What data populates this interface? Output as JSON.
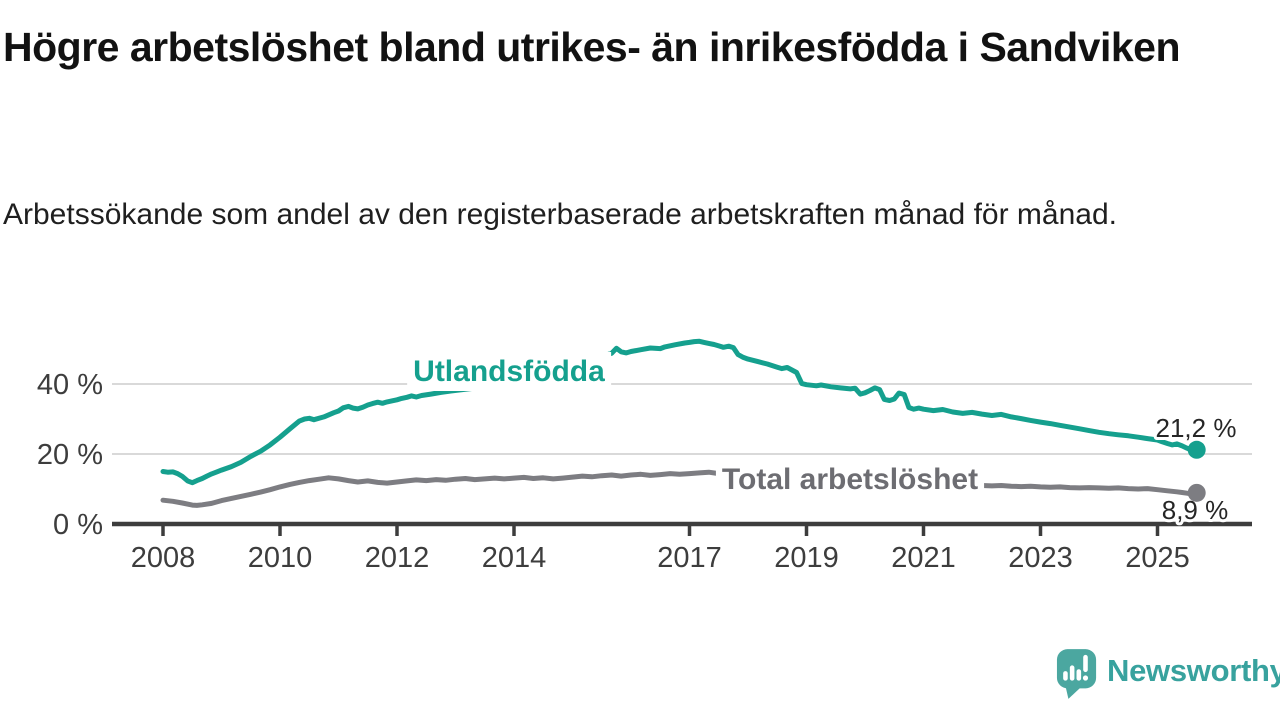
{
  "header": {
    "title": "Högre arbetslöshet bland utrikes- än inrikesfödda i Sandviken",
    "subtitle": "Arbetssökande som andel av den registerbaserade arbetskraften månad för månad."
  },
  "chart_data": {
    "type": "line",
    "title": "Högre arbetslöshet bland utrikes- än inrikesfödda i Sandviken",
    "subtitle": "Arbetssökande som andel av den registerbaserade arbetskraften månad för månad.",
    "unit": "%",
    "grid": "horizontal",
    "legend": "inline-labels",
    "x_range": [
      2008,
      2025.67
    ],
    "ylim": [
      0,
      55
    ],
    "x_ticks": [
      "2008",
      "2010",
      "2012",
      "2014",
      "2017",
      "2019",
      "2021",
      "2023",
      "2025"
    ],
    "y_ticks": [
      {
        "value": 0,
        "label": "0 %"
      },
      {
        "value": 20,
        "label": "20 %"
      },
      {
        "value": 40,
        "label": "40 %"
      }
    ],
    "series": [
      {
        "name": "Utlandsfödda",
        "color": "#15a08e",
        "end_label": "21,2 %",
        "end_value": 21.2,
        "points": [
          [
            2008.0,
            15.0
          ],
          [
            2008.08,
            14.8
          ],
          [
            2008.17,
            14.9
          ],
          [
            2008.25,
            14.4
          ],
          [
            2008.33,
            13.6
          ],
          [
            2008.42,
            12.3
          ],
          [
            2008.5,
            11.8
          ],
          [
            2008.58,
            12.4
          ],
          [
            2008.67,
            13.0
          ],
          [
            2008.75,
            13.7
          ],
          [
            2008.83,
            14.3
          ],
          [
            2008.92,
            14.9
          ],
          [
            2009.0,
            15.4
          ],
          [
            2009.17,
            16.4
          ],
          [
            2009.33,
            17.6
          ],
          [
            2009.5,
            19.3
          ],
          [
            2009.67,
            20.8
          ],
          [
            2009.83,
            22.6
          ],
          [
            2010.0,
            24.8
          ],
          [
            2010.17,
            27.2
          ],
          [
            2010.33,
            29.4
          ],
          [
            2010.42,
            30.0
          ],
          [
            2010.5,
            30.2
          ],
          [
            2010.58,
            29.8
          ],
          [
            2010.75,
            30.6
          ],
          [
            2010.92,
            31.8
          ],
          [
            2011.0,
            32.3
          ],
          [
            2011.08,
            33.2
          ],
          [
            2011.17,
            33.6
          ],
          [
            2011.25,
            33.1
          ],
          [
            2011.33,
            32.9
          ],
          [
            2011.42,
            33.4
          ],
          [
            2011.5,
            34.0
          ],
          [
            2011.58,
            34.4
          ],
          [
            2011.67,
            34.8
          ],
          [
            2011.75,
            34.5
          ],
          [
            2011.83,
            34.9
          ],
          [
            2011.92,
            35.2
          ],
          [
            2012.0,
            35.5
          ],
          [
            2012.08,
            35.9
          ],
          [
            2012.17,
            36.2
          ],
          [
            2012.25,
            36.6
          ],
          [
            2012.33,
            36.3
          ],
          [
            2012.42,
            36.7
          ],
          [
            2012.58,
            37.1
          ],
          [
            2012.75,
            37.6
          ],
          [
            2012.92,
            38.0
          ],
          [
            2013.17,
            38.5
          ],
          [
            2013.42,
            39.0
          ],
          [
            2013.67,
            39.5
          ],
          [
            2013.92,
            40.0
          ],
          [
            2014.17,
            40.7
          ],
          [
            2014.42,
            41.5
          ],
          [
            2014.67,
            42.4
          ],
          [
            2014.92,
            43.5
          ],
          [
            2015.17,
            44.8
          ],
          [
            2015.33,
            45.8
          ],
          [
            2015.42,
            46.4
          ],
          [
            2015.5,
            47.2
          ],
          [
            2015.58,
            48.3
          ],
          [
            2015.67,
            48.8
          ],
          [
            2015.75,
            50.2
          ],
          [
            2015.83,
            49.2
          ],
          [
            2015.92,
            48.9
          ],
          [
            2016.0,
            49.3
          ],
          [
            2016.17,
            49.8
          ],
          [
            2016.33,
            50.3
          ],
          [
            2016.5,
            50.1
          ],
          [
            2016.58,
            50.6
          ],
          [
            2016.75,
            51.2
          ],
          [
            2016.92,
            51.7
          ],
          [
            2017.0,
            51.9
          ],
          [
            2017.08,
            52.1
          ],
          [
            2017.17,
            52.2
          ],
          [
            2017.25,
            51.9
          ],
          [
            2017.33,
            51.6
          ],
          [
            2017.42,
            51.3
          ],
          [
            2017.5,
            50.9
          ],
          [
            2017.58,
            50.5
          ],
          [
            2017.67,
            50.8
          ],
          [
            2017.75,
            50.4
          ],
          [
            2017.83,
            48.4
          ],
          [
            2017.92,
            47.6
          ],
          [
            2018.0,
            47.1
          ],
          [
            2018.17,
            46.4
          ],
          [
            2018.33,
            45.7
          ],
          [
            2018.5,
            44.8
          ],
          [
            2018.58,
            44.4
          ],
          [
            2018.67,
            44.7
          ],
          [
            2018.75,
            44.0
          ],
          [
            2018.83,
            43.3
          ],
          [
            2018.92,
            40.1
          ],
          [
            2019.0,
            39.8
          ],
          [
            2019.17,
            39.5
          ],
          [
            2019.25,
            39.7
          ],
          [
            2019.42,
            39.2
          ],
          [
            2019.58,
            38.9
          ],
          [
            2019.75,
            38.6
          ],
          [
            2019.83,
            38.8
          ],
          [
            2019.92,
            37.1
          ],
          [
            2020.0,
            37.5
          ],
          [
            2020.08,
            38.1
          ],
          [
            2020.17,
            38.9
          ],
          [
            2020.25,
            38.4
          ],
          [
            2020.33,
            35.6
          ],
          [
            2020.42,
            35.3
          ],
          [
            2020.5,
            35.7
          ],
          [
            2020.58,
            37.4
          ],
          [
            2020.67,
            37.0
          ],
          [
            2020.75,
            33.3
          ],
          [
            2020.83,
            32.8
          ],
          [
            2020.92,
            33.1
          ],
          [
            2021.0,
            32.8
          ],
          [
            2021.17,
            32.4
          ],
          [
            2021.33,
            32.7
          ],
          [
            2021.5,
            32.0
          ],
          [
            2021.67,
            31.6
          ],
          [
            2021.83,
            31.9
          ],
          [
            2022.0,
            31.4
          ],
          [
            2022.17,
            31.0
          ],
          [
            2022.33,
            31.3
          ],
          [
            2022.5,
            30.6
          ],
          [
            2022.67,
            30.1
          ],
          [
            2022.83,
            29.6
          ],
          [
            2023.0,
            29.1
          ],
          [
            2023.17,
            28.7
          ],
          [
            2023.33,
            28.2
          ],
          [
            2023.5,
            27.7
          ],
          [
            2023.67,
            27.2
          ],
          [
            2023.83,
            26.7
          ],
          [
            2024.0,
            26.2
          ],
          [
            2024.17,
            25.8
          ],
          [
            2024.33,
            25.5
          ],
          [
            2024.5,
            25.2
          ],
          [
            2024.67,
            24.8
          ],
          [
            2024.83,
            24.4
          ],
          [
            2025.0,
            24.0
          ],
          [
            2025.08,
            23.5
          ],
          [
            2025.17,
            23.0
          ],
          [
            2025.25,
            22.6
          ],
          [
            2025.33,
            22.9
          ],
          [
            2025.42,
            22.3
          ],
          [
            2025.5,
            21.7
          ],
          [
            2025.58,
            21.1
          ],
          [
            2025.67,
            21.2
          ]
        ]
      },
      {
        "name": "Total arbetslöshet",
        "color": "#7d7d82",
        "label_color": "#6d6d72",
        "end_label": "8,9 %",
        "end_value": 8.9,
        "points": [
          [
            2008.0,
            6.8
          ],
          [
            2008.17,
            6.5
          ],
          [
            2008.33,
            6.0
          ],
          [
            2008.5,
            5.4
          ],
          [
            2008.58,
            5.3
          ],
          [
            2008.67,
            5.5
          ],
          [
            2008.83,
            5.9
          ],
          [
            2009.0,
            6.7
          ],
          [
            2009.17,
            7.3
          ],
          [
            2009.33,
            7.9
          ],
          [
            2009.5,
            8.5
          ],
          [
            2009.67,
            9.1
          ],
          [
            2009.83,
            9.8
          ],
          [
            2010.0,
            10.6
          ],
          [
            2010.17,
            11.3
          ],
          [
            2010.33,
            11.9
          ],
          [
            2010.5,
            12.4
          ],
          [
            2010.67,
            12.8
          ],
          [
            2010.83,
            13.2
          ],
          [
            2011.0,
            12.9
          ],
          [
            2011.17,
            12.4
          ],
          [
            2011.33,
            12.0
          ],
          [
            2011.5,
            12.3
          ],
          [
            2011.67,
            11.9
          ],
          [
            2011.83,
            11.7
          ],
          [
            2012.0,
            12.0
          ],
          [
            2012.17,
            12.3
          ],
          [
            2012.33,
            12.6
          ],
          [
            2012.5,
            12.4
          ],
          [
            2012.67,
            12.7
          ],
          [
            2012.83,
            12.5
          ],
          [
            2013.0,
            12.8
          ],
          [
            2013.17,
            13.0
          ],
          [
            2013.33,
            12.7
          ],
          [
            2013.5,
            12.9
          ],
          [
            2013.67,
            13.1
          ],
          [
            2013.83,
            12.9
          ],
          [
            2014.0,
            13.1
          ],
          [
            2014.17,
            13.3
          ],
          [
            2014.33,
            13.0
          ],
          [
            2014.5,
            13.2
          ],
          [
            2014.67,
            12.9
          ],
          [
            2014.83,
            13.1
          ],
          [
            2015.0,
            13.4
          ],
          [
            2015.17,
            13.7
          ],
          [
            2015.33,
            13.5
          ],
          [
            2015.5,
            13.8
          ],
          [
            2015.67,
            14.0
          ],
          [
            2015.83,
            13.7
          ],
          [
            2016.0,
            14.0
          ],
          [
            2016.17,
            14.2
          ],
          [
            2016.33,
            13.9
          ],
          [
            2016.5,
            14.1
          ],
          [
            2016.67,
            14.4
          ],
          [
            2016.83,
            14.2
          ],
          [
            2017.0,
            14.4
          ],
          [
            2017.17,
            14.6
          ],
          [
            2017.33,
            14.8
          ],
          [
            2017.5,
            14.4
          ],
          [
            2017.75,
            14.0
          ],
          [
            2018.0,
            13.6
          ],
          [
            2018.25,
            13.3
          ],
          [
            2018.5,
            13.1
          ],
          [
            2018.75,
            12.9
          ],
          [
            2019.0,
            12.7
          ],
          [
            2019.25,
            12.4
          ],
          [
            2019.5,
            12.2
          ],
          [
            2019.75,
            12.1
          ],
          [
            2020.0,
            12.3
          ],
          [
            2020.25,
            12.7
          ],
          [
            2020.5,
            12.5
          ],
          [
            2020.75,
            12.0
          ],
          [
            2021.0,
            11.8
          ],
          [
            2021.25,
            11.5
          ],
          [
            2021.5,
            11.3
          ],
          [
            2021.75,
            11.1
          ],
          [
            2022.0,
            11.0
          ],
          [
            2022.17,
            10.9
          ],
          [
            2022.33,
            11.0
          ],
          [
            2022.5,
            10.8
          ],
          [
            2022.67,
            10.7
          ],
          [
            2022.83,
            10.8
          ],
          [
            2023.0,
            10.6
          ],
          [
            2023.17,
            10.5
          ],
          [
            2023.33,
            10.6
          ],
          [
            2023.5,
            10.4
          ],
          [
            2023.67,
            10.3
          ],
          [
            2023.83,
            10.4
          ],
          [
            2024.0,
            10.3
          ],
          [
            2024.17,
            10.2
          ],
          [
            2024.33,
            10.3
          ],
          [
            2024.5,
            10.1
          ],
          [
            2024.67,
            10.0
          ],
          [
            2024.83,
            10.1
          ],
          [
            2025.0,
            9.8
          ],
          [
            2025.17,
            9.5
          ],
          [
            2025.33,
            9.2
          ],
          [
            2025.42,
            9.0
          ],
          [
            2025.5,
            8.8
          ],
          [
            2025.58,
            8.6
          ],
          [
            2025.67,
            8.9
          ]
        ]
      }
    ],
    "palette": {
      "gridline": "#d9d9d9",
      "axis": "#3d3d3d",
      "end_label_text": "#262626"
    }
  },
  "logo": {
    "name": "Newsworthy",
    "icon": "newsworthy-bubble-chart-icon",
    "bubble_color": "#4ba7a0",
    "wordmark_color": "#38a29e"
  }
}
